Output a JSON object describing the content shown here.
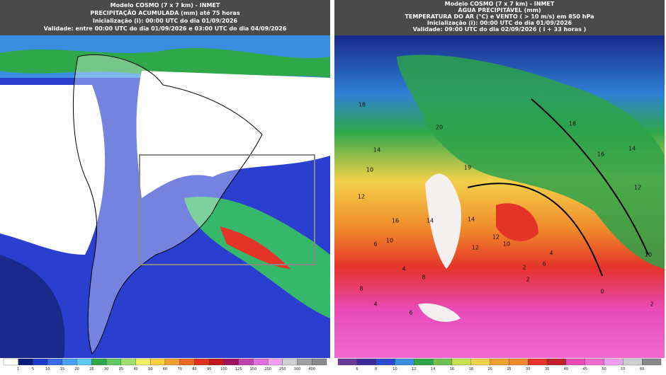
{
  "panels": [
    {
      "title_lines": [
        "Modelo COSMO (7 x 7 km) - INMET",
        "PRECIPITAÇÃO ACUMULADA (mm) até 75 horas",
        "Inicialização (i): 00:00 UTC do dia 01/09/2026",
        "Validade: entre 00:00 UTC do dia 01/09/2026 e 03:00 UTC do dia 04/09/2026"
      ],
      "colorbar_labels": [
        "1",
        "5",
        "10",
        "15",
        "20",
        "25",
        "30",
        "35",
        "40",
        "50",
        "60",
        "70",
        "80",
        "90",
        "100",
        "125",
        "150",
        "200",
        "250",
        "300",
        "400"
      ]
    },
    {
      "title_lines": [
        "Modelo COSMO (7 x 7 km) - INMET",
        "ÁGUA PRECIPITÁVEL (mm)",
        "TEMPERATURA DO AR (°C) e VENTO ( > 10 m/s) em 850 hPa",
        "Inicialização (i): 00:00 UTC do dia 01/09/2026",
        "Validade: 09:00 UTC do dia 02/09/2026 ( i + 33 horas )"
      ],
      "colorbar_labels": [
        "6",
        "8",
        "10",
        "12",
        "14",
        "16",
        "18",
        "20",
        "25",
        "30",
        "35",
        "40",
        "45",
        "50",
        "55",
        "60"
      ],
      "contour_labels": [
        "18",
        "20",
        "14",
        "10",
        "12",
        "16",
        "14",
        "19",
        "18",
        "16",
        "12",
        "14",
        "10",
        "12",
        "8",
        "6",
        "4",
        "2",
        "0",
        "2",
        "4",
        "6",
        "8",
        "10",
        "14",
        "12",
        "10",
        "4",
        "6",
        "2"
      ]
    }
  ]
}
